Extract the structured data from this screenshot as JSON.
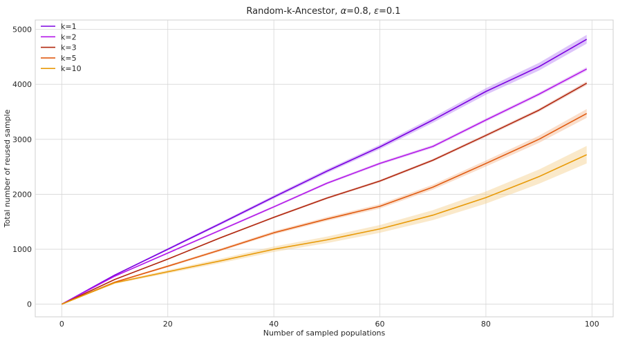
{
  "chart_data": {
    "type": "line",
    "title_parts": [
      "Random-k-Ancestor, ",
      "α",
      "=0.8, ",
      "ε",
      "=0.1"
    ],
    "xlabel": "Number of sampled populations",
    "ylabel": "Total number of reused sample",
    "xlim": [
      -5,
      104
    ],
    "ylim": [
      -230,
      5170
    ],
    "xticks": [
      0,
      20,
      40,
      60,
      80,
      100
    ],
    "yticks": [
      0,
      1000,
      2000,
      3000,
      4000,
      5000
    ],
    "grid": true,
    "legend_position": "top-left",
    "x": [
      0,
      10,
      20,
      30,
      40,
      50,
      60,
      70,
      80,
      90,
      99
    ],
    "series": [
      {
        "name": "k=1",
        "color": "#7b00e0",
        "band_color": "#b37df5",
        "values": [
          0,
          530,
          1000,
          1470,
          1950,
          2420,
          2860,
          3350,
          3870,
          4320,
          4820
        ],
        "band": [
          0,
          10,
          20,
          25,
          30,
          35,
          40,
          50,
          60,
          70,
          80
        ]
      },
      {
        "name": "k=2",
        "color": "#b317e8",
        "band_color": "#d49bf2",
        "values": [
          0,
          510,
          930,
          1350,
          1770,
          2200,
          2560,
          2870,
          3350,
          3820,
          4280
        ],
        "band": [
          0,
          8,
          15,
          18,
          20,
          22,
          25,
          28,
          30,
          32,
          35
        ]
      },
      {
        "name": "k=3",
        "color": "#b0270e",
        "band_color": "#e2a596",
        "values": [
          0,
          450,
          820,
          1210,
          1580,
          1930,
          2240,
          2620,
          3070,
          3530,
          4020
        ],
        "band": [
          0,
          8,
          12,
          15,
          18,
          20,
          22,
          25,
          28,
          30,
          35
        ]
      },
      {
        "name": "k=5",
        "color": "#e05a10",
        "band_color": "#f5b58c",
        "values": [
          0,
          400,
          690,
          990,
          1300,
          1550,
          1780,
          2130,
          2560,
          3000,
          3470
        ],
        "band": [
          0,
          10,
          20,
          25,
          30,
          35,
          40,
          45,
          55,
          65,
          80
        ]
      },
      {
        "name": "k=10",
        "color": "#e89a08",
        "band_color": "#f5cf8a",
        "values": [
          0,
          390,
          590,
          790,
          1000,
          1170,
          1370,
          1620,
          1940,
          2320,
          2720
        ],
        "band": [
          0,
          20,
          30,
          40,
          50,
          60,
          70,
          90,
          110,
          130,
          160
        ]
      }
    ]
  }
}
